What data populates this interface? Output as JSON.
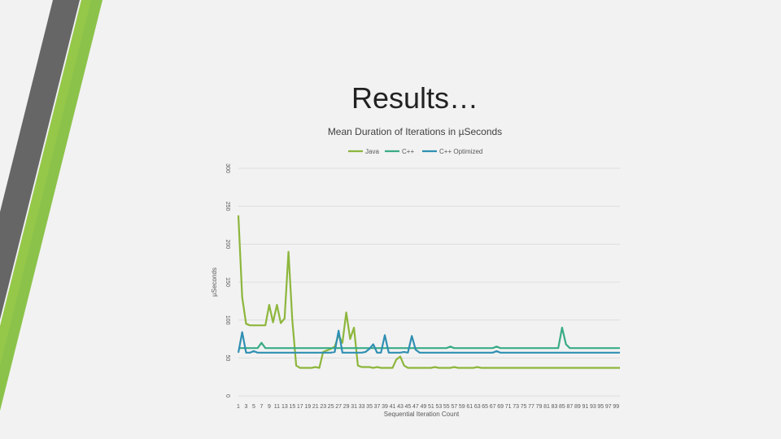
{
  "slide": {
    "title": "Results…"
  },
  "chart_data": {
    "type": "line",
    "title": "Mean Duration of Iterations in µSeconds",
    "xlabel": "Sequential Iteration Count",
    "ylabel": "µSeconds",
    "ylim": [
      0,
      300
    ],
    "yticks": [
      0,
      50,
      100,
      150,
      200,
      250,
      300
    ],
    "grid": true,
    "legend_position": "top",
    "x_tick_labels": [
      1,
      3,
      5,
      7,
      9,
      11,
      13,
      15,
      17,
      19,
      21,
      23,
      25,
      27,
      29,
      31,
      33,
      35,
      37,
      39,
      41,
      43,
      45,
      47,
      49,
      51,
      53,
      55,
      57,
      59,
      61,
      63,
      65,
      67,
      69,
      71,
      73,
      75,
      77,
      79,
      81,
      83,
      85,
      87,
      89,
      91,
      93,
      95,
      97,
      99
    ],
    "series": [
      {
        "name": "Java",
        "color": "#8db63c",
        "values": [
          238,
          130,
          95,
          93,
          93,
          93,
          93,
          93,
          120,
          97,
          120,
          96,
          102,
          190,
          100,
          40,
          37,
          37,
          37,
          37,
          38,
          37,
          58,
          60,
          62,
          65,
          80,
          70,
          110,
          75,
          90,
          40,
          38,
          38,
          38,
          37,
          38,
          37,
          37,
          37,
          37,
          48,
          52,
          40,
          37,
          37,
          37,
          37,
          37,
          37,
          37,
          38,
          37,
          37,
          37,
          37,
          38,
          37,
          37,
          37,
          37,
          37,
          38,
          37,
          37,
          37,
          37,
          37,
          37,
          37,
          37,
          37,
          37,
          37,
          37,
          37,
          37,
          37,
          37,
          37,
          37,
          37,
          37,
          37,
          37,
          37,
          37,
          37,
          37,
          37,
          37,
          37,
          37,
          37,
          37,
          37,
          37,
          37,
          37,
          37
        ]
      },
      {
        "name": "C++",
        "color": "#3aab86",
        "values": [
          63,
          63,
          63,
          63,
          63,
          63,
          70,
          63,
          63,
          63,
          63,
          63,
          63,
          63,
          63,
          63,
          63,
          63,
          63,
          63,
          63,
          63,
          63,
          63,
          63,
          63,
          63,
          63,
          63,
          63,
          63,
          63,
          63,
          63,
          63,
          63,
          63,
          63,
          63,
          63,
          63,
          63,
          63,
          63,
          63,
          63,
          63,
          63,
          63,
          63,
          63,
          63,
          63,
          63,
          63,
          65,
          63,
          63,
          63,
          63,
          63,
          63,
          63,
          63,
          63,
          63,
          63,
          65,
          63,
          63,
          63,
          63,
          63,
          63,
          63,
          63,
          63,
          63,
          63,
          63,
          63,
          63,
          63,
          63,
          90,
          68,
          63,
          63,
          63,
          63,
          63,
          63,
          63,
          63,
          63,
          63,
          63,
          63,
          63,
          63
        ]
      },
      {
        "name": "C++ Optimized",
        "color": "#2f8fb3",
        "values": [
          57,
          84,
          57,
          57,
          59,
          57,
          57,
          57,
          57,
          57,
          57,
          57,
          57,
          57,
          57,
          57,
          57,
          57,
          57,
          57,
          57,
          57,
          57,
          57,
          57,
          58,
          86,
          57,
          57,
          57,
          57,
          57,
          57,
          58,
          62,
          68,
          57,
          57,
          80,
          57,
          57,
          57,
          57,
          58,
          57,
          79,
          61,
          57,
          57,
          57,
          57,
          57,
          57,
          57,
          57,
          57,
          57,
          57,
          57,
          57,
          57,
          57,
          57,
          57,
          57,
          57,
          57,
          59,
          57,
          57,
          57,
          57,
          57,
          57,
          57,
          57,
          57,
          57,
          57,
          57,
          57,
          57,
          57,
          57,
          57,
          57,
          57,
          57,
          57,
          57,
          57,
          57,
          57,
          57,
          57,
          57,
          57,
          57,
          57,
          57
        ]
      }
    ]
  }
}
